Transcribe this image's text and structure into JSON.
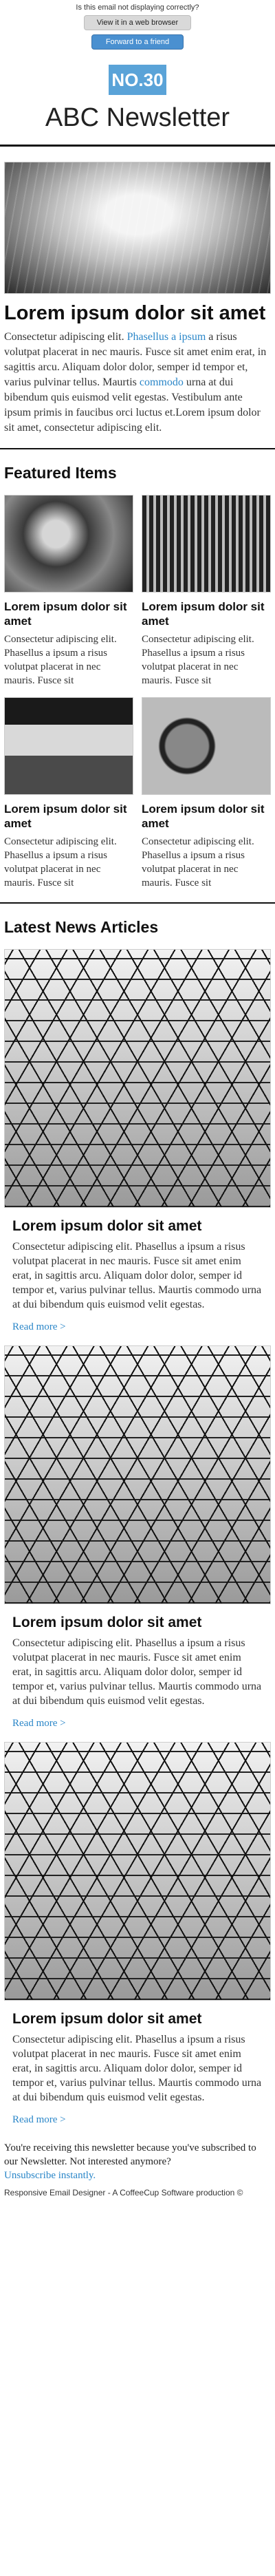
{
  "preheader": {
    "notice": "Is this email not displaying correctly?",
    "view_browser": "View it in a web browser",
    "forward": "Forward to a friend"
  },
  "masthead": {
    "issue": "NO.30",
    "title": "ABC Newsletter"
  },
  "lead": {
    "heading": "Lorem ipsum dolor sit amet",
    "p_start": "Consectetur adipiscing elit. ",
    "link1": "Phasellus a ipsum",
    "p_mid": " a risus volutpat placerat in nec mauris. Fusce sit amet enim erat, in sagittis arcu. Aliquam dolor dolor, semper id tempor et, varius pulvinar tellus. Maurtis ",
    "link2": "commodo",
    "p_end": " urna at dui bibendum quis euismod velit egestas. Vestibulum ante ipsum primis in faucibus orci luctus et.Lorem ipsum dolor sit amet, consectetur adipiscing elit."
  },
  "featured": {
    "heading": "Featured Items",
    "items": [
      {
        "title": "Lorem ipsum dolor sit amet",
        "text": "Consectetur adipiscing elit. Phasellus a ipsum a risus volutpat placerat in nec mauris. Fusce sit"
      },
      {
        "title": "Lorem ipsum dolor sit amet",
        "text": "Consectetur adipiscing elit. Phasellus a ipsum a risus volutpat placerat in nec mauris. Fusce sit"
      },
      {
        "title": "Lorem ipsum dolor sit amet",
        "text": "Consectetur adipiscing elit. Phasellus a ipsum a risus volutpat placerat in nec mauris. Fusce sit"
      },
      {
        "title": "Lorem ipsum dolor sit amet",
        "text": "Consectetur adipiscing elit. Phasellus a ipsum a risus volutpat placerat in nec mauris. Fusce sit"
      }
    ]
  },
  "news": {
    "heading": "Latest News Articles",
    "articles": [
      {
        "title": "Lorem ipsum dolor sit amet",
        "text": "Consectetur adipiscing elit. Phasellus a ipsum a risus volutpat placerat in nec mauris. Fusce sit amet enim erat, in sagittis arcu. Aliquam dolor dolor, semper id tempor et, varius pulvinar tellus. Maurtis commodo urna at dui bibendum quis euismod velit egestas.",
        "read_more": "Read more >"
      },
      {
        "title": "Lorem ipsum dolor sit amet",
        "text": "Consectetur adipiscing elit. Phasellus a ipsum a risus volutpat placerat in nec mauris. Fusce sit amet enim erat, in sagittis arcu. Aliquam dolor dolor, semper id tempor et, varius pulvinar tellus. Maurtis commodo urna at dui bibendum quis euismod velit egestas.",
        "read_more": "Read more >"
      },
      {
        "title": "Lorem ipsum dolor sit amet",
        "text": "Consectetur adipiscing elit. Phasellus a ipsum a risus volutpat placerat in nec mauris. Fusce sit amet enim erat, in sagittis arcu. Aliquam dolor dolor, semper id tempor et, varius pulvinar tellus. Maurtis commodo urna at dui bibendum quis euismod velit egestas.",
        "read_more": "Read more >"
      }
    ]
  },
  "footer": {
    "text": "You're receiving this newsletter because you've subscribed to our Newsletter. Not interested anymore?",
    "unsubscribe": "Unsubscribe instantly.",
    "credit": "Responsive Email Designer - A CoffeeCup Software production ©"
  },
  "colors": {
    "accent": "#5aa3d8",
    "link": "#2a86c8",
    "button_blue": "#4a90d0"
  }
}
